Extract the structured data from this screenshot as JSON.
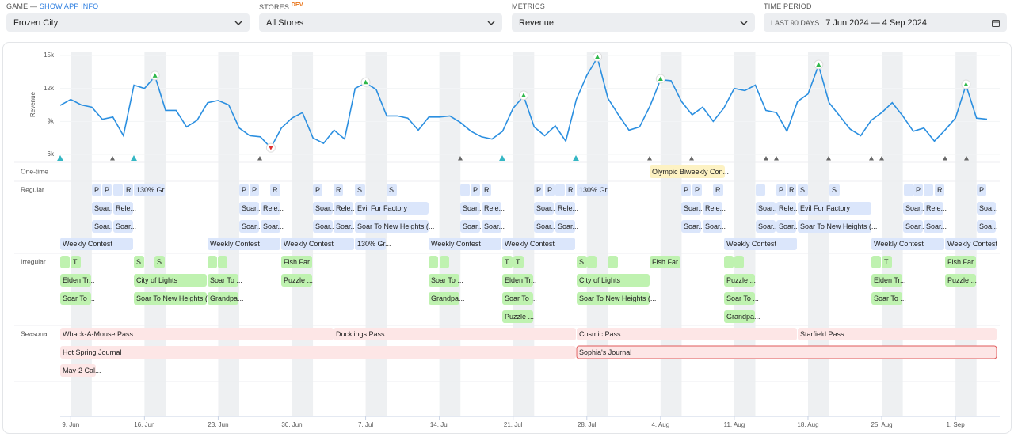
{
  "filters": {
    "game": {
      "label": "GAME —",
      "link": "SHOW APP INFO",
      "value": "Frozen City"
    },
    "stores": {
      "label": "STORES",
      "badge": "DEV",
      "value": "All Stores"
    },
    "metrics": {
      "label": "METRICS",
      "value": "Revenue"
    },
    "time_period": {
      "label": "TIME PERIOD",
      "preset": "LAST 90 DAYS",
      "range": "7 Jun 2024 — 4 Sep 2024"
    }
  },
  "chart_data": {
    "type": "line",
    "y_label": "Revenue",
    "color": "#2b8fe0",
    "x": [
      "8 Jun",
      "9 Jun",
      "10 Jun",
      "11 Jun",
      "12 Jun",
      "13 Jun",
      "14 Jun",
      "15 Jun",
      "16 Jun",
      "17 Jun",
      "18 Jun",
      "19 Jun",
      "20 Jun",
      "21 Jun",
      "22 Jun",
      "23 Jun",
      "24 Jun",
      "25 Jun",
      "26 Jun",
      "27 Jun",
      "28 Jun",
      "29 Jun",
      "30 Jun",
      "1 Jul",
      "2 Jul",
      "3 Jul",
      "4 Jul",
      "5 Jul",
      "6 Jul",
      "7 Jul",
      "8 Jul",
      "9 Jul",
      "10 Jul",
      "11 Jul",
      "12 Jul",
      "13 Jul",
      "14 Jul",
      "15 Jul",
      "16 Jul",
      "17 Jul",
      "18 Jul",
      "19 Jul",
      "20 Jul",
      "21 Jul",
      "22 Jul",
      "23 Jul",
      "24 Jul",
      "25 Jul",
      "26 Jul",
      "27 Jul",
      "28 Jul",
      "29 Jul",
      "30 Jul",
      "31 Jul",
      "1 Aug",
      "2 Aug",
      "3 Aug",
      "4 Aug",
      "5 Aug",
      "6 Aug",
      "7 Aug",
      "8 Aug",
      "9 Aug",
      "10 Aug",
      "11 Aug",
      "12 Aug",
      "13 Aug",
      "14 Aug",
      "15 Aug",
      "16 Aug",
      "17 Aug",
      "18 Aug",
      "19 Aug",
      "20 Aug",
      "21 Aug",
      "22 Aug",
      "23 Aug",
      "24 Aug",
      "25 Aug",
      "26 Aug",
      "27 Aug",
      "28 Aug",
      "29 Aug",
      "30 Aug",
      "31 Aug",
      "1 Sep",
      "2 Sep",
      "3 Sep",
      "4 Sep"
    ],
    "values": [
      10460,
      11000,
      10500,
      10300,
      9200,
      9400,
      7700,
      12300,
      12000,
      13100,
      10000,
      10000,
      8500,
      9100,
      10700,
      10900,
      10500,
      8400,
      7700,
      7600,
      6600,
      8400,
      9300,
      9800,
      7500,
      7000,
      8200,
      7400,
      12000,
      12500,
      11900,
      9500,
      9500,
      9300,
      8200,
      9400,
      9400,
      9500,
      8900,
      8100,
      7600,
      7400,
      8100,
      10200,
      11300,
      8500,
      7700,
      8600,
      7200,
      11000,
      13200,
      14800,
      11100,
      9600,
      8200,
      8500,
      10400,
      12800,
      12700,
      10800,
      9600,
      10300,
      9000,
      10200,
      12000,
      11800,
      12300,
      10000,
      9800,
      8100,
      10800,
      11500,
      14100,
      10700,
      9500,
      8300,
      7700,
      9100,
      9800,
      10700,
      9500,
      8100,
      8400,
      7200,
      8200,
      9300,
      12300,
      9300,
      9200
    ],
    "ylim": [
      6000,
      15000
    ],
    "yticks": [
      {
        "value": 6000,
        "label": "6k"
      },
      {
        "value": 9000,
        "label": "9k"
      },
      {
        "value": 12000,
        "label": "12k"
      },
      {
        "value": 15000,
        "label": "15k"
      }
    ],
    "xticks": [
      {
        "value": "9 Jun",
        "label": "9. Jun"
      },
      {
        "value": "16 Jun",
        "label": "16. Jun"
      },
      {
        "value": "23 Jun",
        "label": "23. Jun"
      },
      {
        "value": "30 Jun",
        "label": "30. Jun"
      },
      {
        "value": "7 Jul",
        "label": "7. Jul"
      },
      {
        "value": "14 Jul",
        "label": "14. Jul"
      },
      {
        "value": "21 Jul",
        "label": "21. Jul"
      },
      {
        "value": "28 Jul",
        "label": "28. Jul"
      },
      {
        "value": "4 Aug",
        "label": "4. Aug"
      },
      {
        "value": "11 Aug",
        "label": "11. Aug"
      },
      {
        "value": "18 Aug",
        "label": "18. Aug"
      },
      {
        "value": "25 Aug",
        "label": "25. Aug"
      },
      {
        "value": "1 Sep",
        "label": "1. Sep"
      }
    ]
  },
  "events": {
    "lanes": [
      {
        "name": "One-time",
        "rows": [
          [
            "Olympic Biweekly Con..."
          ]
        ]
      },
      {
        "name": "Regular",
        "rows": [
          [
            "P...",
            "P...",
            "R...",
            "130% Gr...",
            "P...",
            "P...",
            "R...",
            "P...",
            "R...",
            "S...",
            "S...",
            "P...",
            "R...",
            "P...",
            "P...",
            "R...",
            "130% Gr...",
            "P...",
            "P...",
            "R...",
            "P...",
            "R...",
            "S...",
            "S...",
            "P...",
            "R...",
            "P..."
          ],
          [
            "Soar...",
            "Rele...",
            "Soar...",
            "Rele...",
            "Soar...",
            "Rele...",
            "Evil Fur Factory",
            "Soar...",
            "Rele...",
            "Soar...",
            "Rele...",
            "Soar...",
            "Rele...",
            "Soar...",
            "Rele...",
            "Evil Fur Factory",
            "Soar...",
            "Rele...",
            "Soa..."
          ],
          [
            "Soar...",
            "Soar...",
            "Soar...",
            "Soar...",
            "Soar...",
            "Soar...",
            "Soar To New Heights (...",
            "Soar...",
            "Soar...",
            "Soar...",
            "Soar...",
            "Soar...",
            "Soar...",
            "Soar...",
            "Soar...",
            "Soar To New Heights (...",
            "Soar...",
            "Soar...",
            "Soa..."
          ],
          [
            "Weekly Contest",
            "Weekly Contest",
            "Weekly Contest",
            "130% Gr...",
            "Weekly Contest",
            "Weekly Contest",
            "Weekly Contest",
            "Weekly Contest",
            "Weekly Contest"
          ]
        ]
      },
      {
        "name": "Irregular",
        "rows": [
          [
            "T...",
            "S...",
            "S...",
            "Fish Far...",
            "T...",
            "T...",
            "S...",
            "Fish Far...",
            "T...",
            "Fish Far..."
          ],
          [
            "Elden Tr...",
            "City of Lights",
            "Soar To ...",
            "Puzzle ...",
            "Soar To ...",
            "Elden Tr...",
            "City of Lights",
            "Puzzle ...",
            "Elden Tr...",
            "Puzzle ..."
          ],
          [
            "Soar To ...",
            "Soar To New Heights (...",
            "Grandpa...",
            "Grandpa...",
            "Soar To ...",
            "Soar To New Heights (...",
            "Soar To ...",
            "Soar To ..."
          ],
          [
            "Puzzle ...",
            "Grandpa..."
          ]
        ]
      },
      {
        "name": "Seasonal",
        "rows": [
          [
            "Whack-A-Mouse Pass",
            "Ducklings Pass",
            "Cosmic Pass",
            "Starfield Pass"
          ],
          [
            "Hot Spring Journal",
            "Sophia's Journal"
          ],
          [
            "May-2 Cal..."
          ]
        ]
      }
    ]
  }
}
